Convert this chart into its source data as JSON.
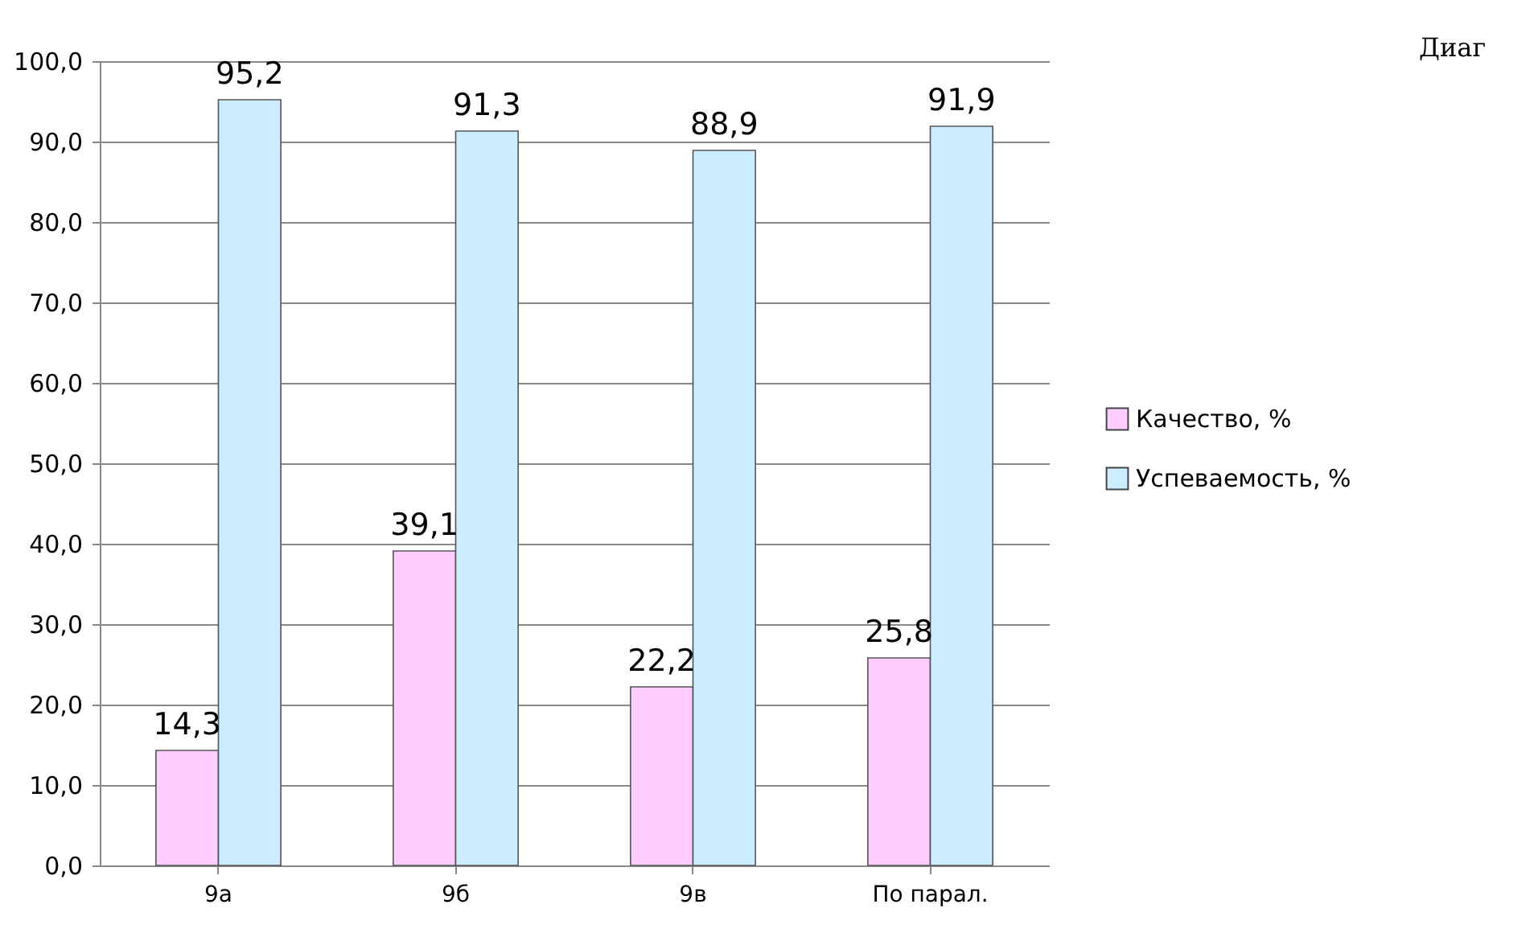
{
  "chart_data": {
    "type": "bar",
    "categories": [
      "9а",
      "9б",
      "9в",
      "По парал."
    ],
    "series": [
      {
        "name": "Качество, %",
        "color": "#ffccff",
        "values": [
          14.3,
          39.1,
          22.2,
          25.8
        ],
        "value_labels": [
          "14,3",
          "39,1",
          "22,2",
          "25,8"
        ]
      },
      {
        "name": "Успеваемость, %",
        "color": "#ccecff",
        "values": [
          95.2,
          91.3,
          88.9,
          91.9
        ],
        "value_labels": [
          "95,2",
          "91,3",
          "88,9",
          "91,9"
        ]
      }
    ],
    "ylim": [
      0,
      100
    ],
    "yticks": [
      {
        "value": 0,
        "label": "0,0"
      },
      {
        "value": 10,
        "label": "10,0"
      },
      {
        "value": 20,
        "label": "20,0"
      },
      {
        "value": 30,
        "label": "30,0"
      },
      {
        "value": 40,
        "label": "40,0"
      },
      {
        "value": 50,
        "label": "50,0"
      },
      {
        "value": 60,
        "label": "60,0"
      },
      {
        "value": 70,
        "label": "70,0"
      },
      {
        "value": 80,
        "label": "80,0"
      },
      {
        "value": 90,
        "label": "90,0"
      },
      {
        "value": 100,
        "label": "100,0"
      }
    ],
    "grid": "y",
    "legend": "right",
    "annotations": [
      "Диаг"
    ]
  }
}
